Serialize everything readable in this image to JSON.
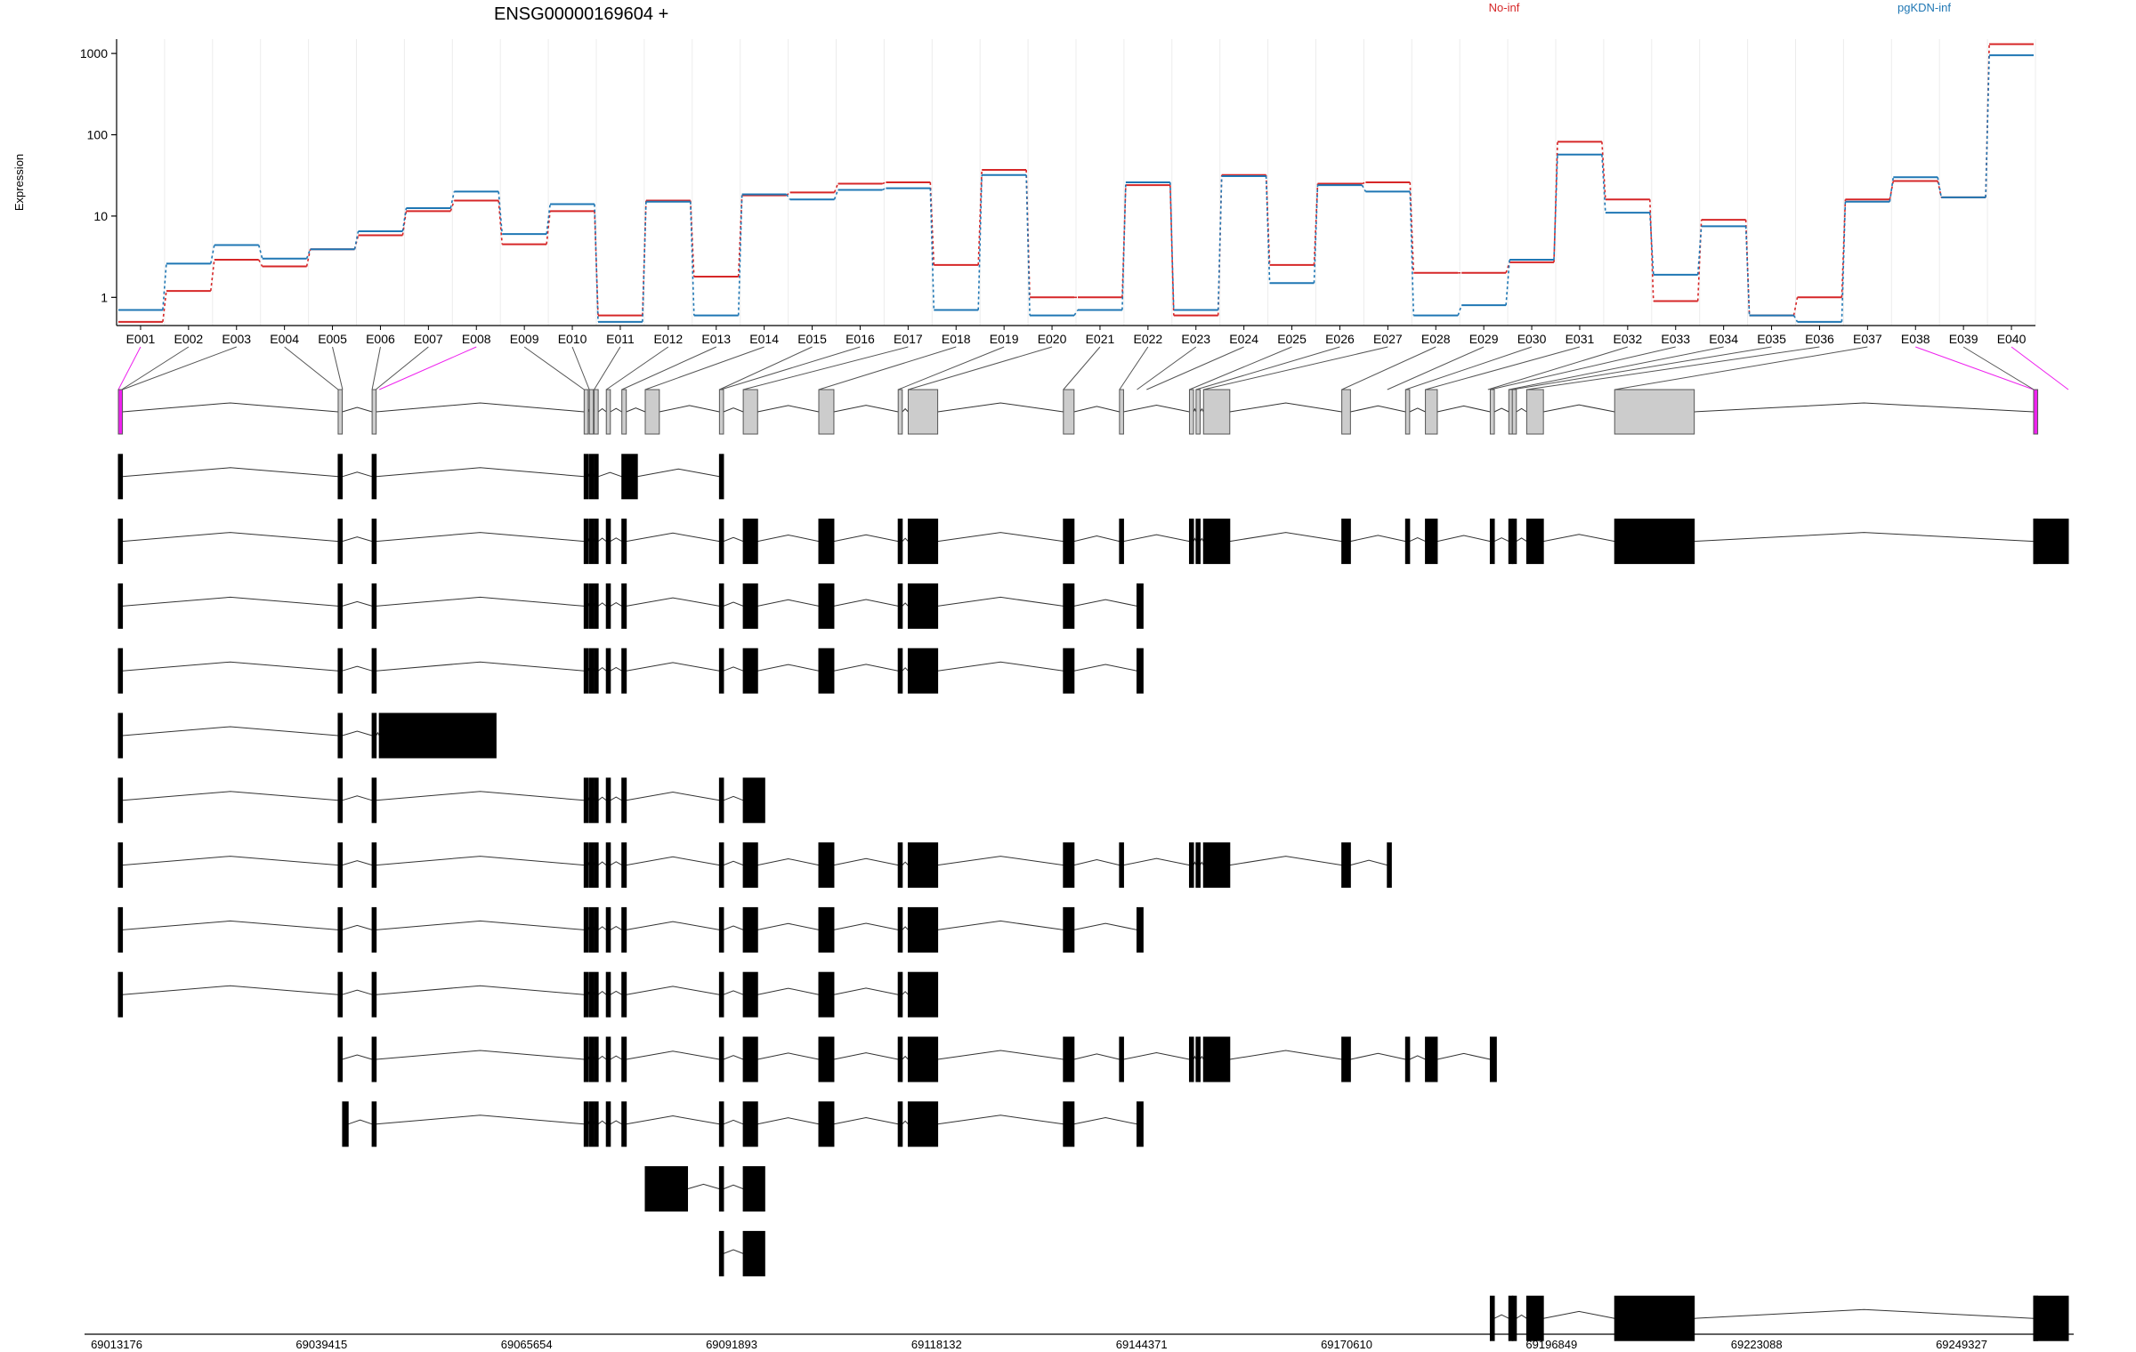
{
  "chart_data": {
    "type": "line",
    "title": "ENSG00000169604 +",
    "ylabel": "Expression",
    "xlabel": "",
    "y_scale": "log",
    "ylim": [
      0.45,
      1500
    ],
    "y_ticks": [
      1,
      10,
      100,
      1000
    ],
    "y_tick_labels": [
      "1",
      "10",
      "100",
      "1000"
    ],
    "categories": [
      "E001",
      "E002",
      "E003",
      "E004",
      "E005",
      "E006",
      "E007",
      "E008",
      "E009",
      "E010",
      "E011",
      "E012",
      "E013",
      "E014",
      "E015",
      "E016",
      "E017",
      "E018",
      "E019",
      "E020",
      "E021",
      "E022",
      "E023",
      "E024",
      "E025",
      "E026",
      "E027",
      "E028",
      "E029",
      "E030",
      "E031",
      "E032",
      "E033",
      "E034",
      "E035",
      "E036",
      "E037",
      "E038",
      "E039",
      "E040"
    ],
    "grid": "vertical",
    "legend_position": "top-right",
    "series": [
      {
        "name": "No-inf",
        "color": "#d62728",
        "values": [
          0.5,
          1.2,
          2.9,
          2.4,
          3.9,
          5.8,
          11.5,
          15.5,
          4.5,
          11.5,
          0.6,
          15.5,
          1.8,
          18,
          19.5,
          25,
          26,
          2.5,
          37,
          1.0,
          1.0,
          24,
          0.6,
          32,
          2.5,
          25,
          26,
          2.0,
          2.0,
          2.7,
          82,
          16,
          0.9,
          9.0,
          0.6,
          1.0,
          16,
          27,
          17,
          1300
        ]
      },
      {
        "name": "pgKDN-inf",
        "color": "#1f77b4",
        "values": [
          0.7,
          2.6,
          4.4,
          3.0,
          3.9,
          6.5,
          12.5,
          20,
          6.0,
          14,
          0.5,
          15,
          0.6,
          18.5,
          16,
          21,
          22,
          0.7,
          32,
          0.6,
          0.7,
          26,
          0.7,
          31,
          1.5,
          24,
          20,
          0.6,
          0.8,
          2.9,
          57,
          11,
          1.9,
          7.5,
          0.6,
          0.5,
          15,
          30,
          17,
          950
        ]
      }
    ],
    "exon_plot_fraction": [
      0.0,
      0.00172,
      0.00206,
      0.11271,
      0.11498,
      0.13012,
      0.13198,
      0.13381,
      0.23886,
      0.24152,
      0.24398,
      0.25022,
      0.25819,
      0.27019,
      0.30825,
      0.30894,
      0.32045,
      0.3592,
      0.39991,
      0.40505,
      0.48463,
      0.5134,
      0.52236,
      0.5273,
      0.54928,
      0.55266,
      0.55649,
      0.6274,
      0.65074,
      0.66011,
      0.67028,
      0.70234,
      0.70354,
      0.71305,
      0.71484,
      0.72222,
      0.76733,
      0.98219,
      0.9823,
      1.0
    ],
    "exon_highlight": [
      "E001",
      "E008",
      "E038",
      "E040"
    ],
    "highlight_color": "#ee22ee",
    "genome_axis": {
      "tick_labels": [
        "69013176",
        "69039415",
        "69065654",
        "69091893",
        "69118132",
        "69144371",
        "69170610",
        "69196849",
        "69223088",
        "69249327"
      ],
      "range": [
        69013176,
        69249327
      ]
    },
    "transcripts": [
      [
        [
          0,
          0.2
        ],
        [
          3,
          3.2
        ],
        [
          5,
          5.2
        ],
        [
          8,
          8.2
        ],
        [
          9,
          9.2
        ],
        [
          10,
          10.2
        ],
        [
          11,
          11.2
        ],
        [
          12,
          12.2
        ],
        [
          13,
          13.2
        ],
        [
          14,
          14.2
        ],
        [
          16,
          16.2
        ],
        [
          17,
          17.2
        ],
        [
          18,
          18.2
        ],
        [
          19,
          19.2
        ],
        [
          20,
          20.2
        ],
        [
          21,
          21.2
        ],
        [
          24,
          24.2
        ],
        [
          25,
          25.2
        ],
        [
          26,
          26.2
        ],
        [
          27,
          27.2
        ],
        [
          29,
          29.2
        ],
        [
          30,
          30.2
        ],
        [
          32,
          32.2
        ],
        [
          33,
          33.2
        ],
        [
          34,
          34.2
        ],
        [
          35,
          35.2
        ],
        [
          36,
          36.2
        ],
        [
          37,
          37.2
        ]
      ],
      [
        [
          0,
          0.2
        ],
        [
          3,
          3.2
        ],
        [
          5,
          5.2
        ],
        [
          8,
          8.2
        ],
        [
          9,
          9.2
        ],
        [
          10,
          10.2
        ],
        [
          12,
          12.7
        ],
        [
          14,
          14.2
        ]
      ],
      [
        [
          0,
          0.2
        ],
        [
          3,
          3.2
        ],
        [
          5,
          5.2
        ],
        [
          8,
          8.2
        ],
        [
          9,
          9.2
        ],
        [
          10,
          10.2
        ],
        [
          11,
          11.2
        ],
        [
          12,
          12.2
        ],
        [
          14,
          14.2
        ],
        [
          16,
          16.2
        ],
        [
          17,
          17.2
        ],
        [
          18,
          18.2
        ],
        [
          19,
          19.2
        ],
        [
          20,
          20.2
        ],
        [
          21,
          21.2
        ],
        [
          24,
          24.2
        ],
        [
          25,
          25.2
        ],
        [
          26,
          26.2
        ],
        [
          27,
          27.2
        ],
        [
          29,
          29.2
        ],
        [
          30,
          30.2
        ],
        [
          32,
          32.2
        ],
        [
          33,
          33.2
        ],
        [
          34,
          34.2
        ],
        [
          35,
          35.2
        ],
        [
          36,
          36.2
        ],
        [
          37,
          37.2
        ],
        [
          38,
          39
        ]
      ],
      [
        [
          0,
          0.2
        ],
        [
          3,
          3.2
        ],
        [
          5,
          5.2
        ],
        [
          8,
          8.2
        ],
        [
          9,
          9.2
        ],
        [
          10,
          10.2
        ],
        [
          11,
          11.2
        ],
        [
          12,
          12.2
        ],
        [
          14,
          14.2
        ],
        [
          16,
          16.2
        ],
        [
          17,
          17.2
        ],
        [
          18,
          18.2
        ],
        [
          19,
          19.2
        ],
        [
          20,
          20.2
        ],
        [
          22,
          22.3
        ]
      ],
      [
        [
          0,
          0.2
        ],
        [
          3,
          3.2
        ],
        [
          5,
          5.2
        ],
        [
          8,
          8.2
        ],
        [
          9,
          9.2
        ],
        [
          10,
          10.2
        ],
        [
          11,
          11.2
        ],
        [
          12,
          12.2
        ],
        [
          14,
          14.2
        ],
        [
          16,
          16.2
        ],
        [
          17,
          17.2
        ],
        [
          18,
          18.2
        ],
        [
          19,
          19.2
        ],
        [
          20,
          20.2
        ],
        [
          22,
          22.3
        ]
      ],
      [
        [
          0,
          0.2
        ],
        [
          3,
          3.2
        ],
        [
          5,
          5.2
        ],
        [
          7,
          7.6
        ]
      ],
      [
        [
          0,
          0.2
        ],
        [
          3,
          3.2
        ],
        [
          5,
          5.2
        ],
        [
          8,
          8.2
        ],
        [
          9,
          9.2
        ],
        [
          10,
          10.2
        ],
        [
          11,
          11.2
        ],
        [
          12,
          12.2
        ],
        [
          14,
          14.2
        ],
        [
          16,
          16.3
        ]
      ],
      [
        [
          0,
          0.2
        ],
        [
          3,
          3.2
        ],
        [
          5,
          5.2
        ],
        [
          8,
          8.2
        ],
        [
          9,
          9.2
        ],
        [
          10,
          10.2
        ],
        [
          11,
          11.2
        ],
        [
          12,
          12.2
        ],
        [
          14,
          14.2
        ],
        [
          16,
          16.2
        ],
        [
          17,
          17.2
        ],
        [
          18,
          18.2
        ],
        [
          19,
          19.2
        ],
        [
          20,
          20.2
        ],
        [
          21,
          21.2
        ],
        [
          24,
          24.2
        ],
        [
          25,
          25.2
        ],
        [
          26,
          26.2
        ],
        [
          27,
          27.2
        ],
        [
          28,
          28.2
        ]
      ],
      [
        [
          0,
          0.2
        ],
        [
          3,
          3.2
        ],
        [
          5,
          5.2
        ],
        [
          8,
          8.2
        ],
        [
          9,
          9.2
        ],
        [
          10,
          10.2
        ],
        [
          11,
          11.2
        ],
        [
          12,
          12.2
        ],
        [
          14,
          14.2
        ],
        [
          16,
          16.2
        ],
        [
          17,
          17.2
        ],
        [
          18,
          18.2
        ],
        [
          19,
          19.2
        ],
        [
          20,
          20.2
        ],
        [
          22,
          22.3
        ]
      ],
      [
        [
          0,
          0.2
        ],
        [
          3,
          3.2
        ],
        [
          5,
          5.2
        ],
        [
          8,
          8.2
        ],
        [
          9,
          9.2
        ],
        [
          10,
          10.2
        ],
        [
          11,
          11.2
        ],
        [
          12,
          12.2
        ],
        [
          14,
          14.2
        ],
        [
          16,
          16.2
        ],
        [
          17,
          17.2
        ],
        [
          18,
          18.2
        ],
        [
          19,
          19.2
        ]
      ],
      [
        [
          3,
          3.2
        ],
        [
          5,
          5.2
        ],
        [
          8,
          8.2
        ],
        [
          9,
          9.2
        ],
        [
          10,
          10.2
        ],
        [
          11,
          11.2
        ],
        [
          12,
          12.2
        ],
        [
          14,
          14.2
        ],
        [
          16,
          16.2
        ],
        [
          17,
          17.2
        ],
        [
          18,
          18.2
        ],
        [
          19,
          19.2
        ],
        [
          20,
          20.2
        ],
        [
          21,
          21.2
        ],
        [
          24,
          24.2
        ],
        [
          25,
          25.2
        ],
        [
          26,
          26.2
        ],
        [
          27,
          27.2
        ],
        [
          29,
          29.2
        ],
        [
          30,
          30.2
        ],
        [
          32,
          32.3
        ]
      ],
      [
        [
          4,
          4.2
        ],
        [
          5,
          5.2
        ],
        [
          8,
          8.2
        ],
        [
          9,
          9.2
        ],
        [
          10,
          10.2
        ],
        [
          11,
          11.2
        ],
        [
          12,
          12.2
        ],
        [
          14,
          14.2
        ],
        [
          16,
          16.2
        ],
        [
          17,
          17.2
        ],
        [
          18,
          18.2
        ],
        [
          19,
          19.2
        ],
        [
          20,
          20.2
        ],
        [
          22,
          22.3
        ]
      ],
      [
        [
          13,
          13.6
        ],
        [
          14,
          14.2
        ],
        [
          16,
          16.3
        ]
      ],
      [
        [
          14,
          14.2
        ],
        [
          16,
          16.3
        ]
      ],
      [
        [
          32,
          32.2
        ],
        [
          33,
          33.2
        ],
        [
          34,
          34.2
        ],
        [
          35,
          35.2
        ],
        [
          36,
          36.2
        ],
        [
          37,
          37.2
        ],
        [
          38,
          39
        ]
      ]
    ]
  }
}
